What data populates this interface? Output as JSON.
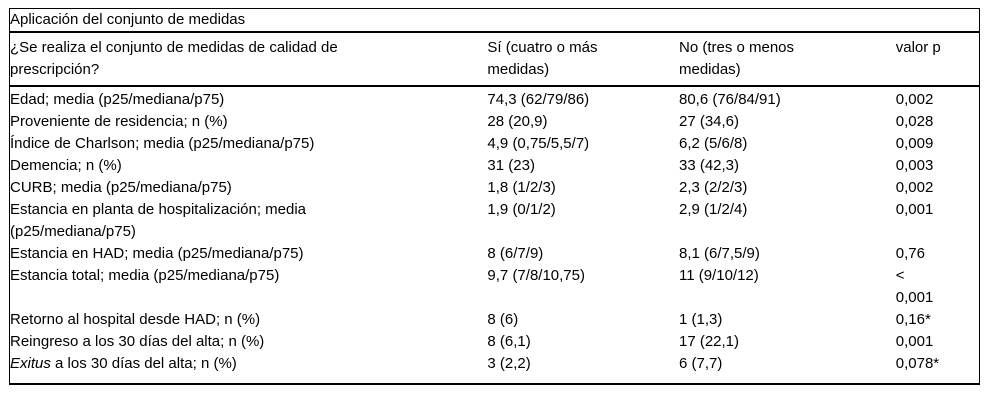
{
  "table": {
    "title": "Aplicación del conjunto de medidas",
    "columns": {
      "question": "¿Se realiza el conjunto de medidas de calidad de\nprescripción?",
      "yes": "Sí (cuatro o más\nmedidas)",
      "no": "No (tres o menos\nmedidas)",
      "p": "valor p"
    },
    "rows": [
      {
        "label": "Edad; media (p25/mediana/p75)",
        "si": "74,3 (62/79/86)",
        "no": "80,6 (76/84/91)",
        "p": "0,002"
      },
      {
        "label": "Proveniente de residencia; n (%)",
        "si": "28 (20,9)",
        "no": "27 (34,6)",
        "p": "0,028"
      },
      {
        "label": "Índice de Charlson; media (p25/mediana/p75)",
        "si": "4,9 (0,75/5,5/7)",
        "no": "6,2 (5/6/8)",
        "p": "0,009"
      },
      {
        "label": "Demencia; n (%)",
        "si": "31 (23)",
        "no": "33 (42,3)",
        "p": "0,003"
      },
      {
        "label": "CURB; media (p25/mediana/p75)",
        "si": "1,8 (1/2/3)",
        "no": "2,3 (2/2/3)",
        "p": "0,002"
      },
      {
        "label": "Estancia en planta de hospitalización; media\n(p25/mediana/p75)",
        "si": "1,9 (0/1/2)",
        "no": "2,9 (1/2/4)",
        "p": "0,001"
      },
      {
        "label": "Estancia en HAD; media (p25/mediana/p75)",
        "si": "8 (6/7/9)",
        "no": "8,1 (6/7,5/9)",
        "p": "0,76"
      },
      {
        "label": "Estancia total; media (p25/mediana/p75)",
        "si": "9,7 (7/8/10,75)",
        "no": "11 (9/10/12)",
        "p": "<\n0,001"
      },
      {
        "label": "Retorno al hospital desde HAD; n (%)",
        "si": "8 (6)",
        "no": "1 (1,3)",
        "p": "0,16*"
      },
      {
        "label": "Reingreso a los 30 días del alta; n (%)",
        "si": "8 (6,1)",
        "no": "17 (22,1)",
        "p": "0,001"
      },
      {
        "label_italic": "Exitus",
        "label": " a los 30 días del alta; n (%)",
        "si": "3 (2,2)",
        "no": "6 (7,7)",
        "p": "0,078*"
      }
    ],
    "colors": {
      "text": "#000000",
      "rule": "#000000",
      "background": "#ffffff"
    }
  }
}
